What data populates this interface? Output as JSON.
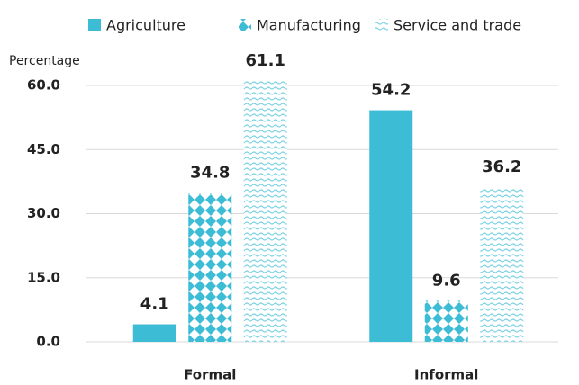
{
  "chart_data": {
    "type": "bar",
    "y_label": "Percentage",
    "categories": [
      "Formal",
      "Informal"
    ],
    "series": [
      {
        "name": "Agriculture",
        "color": "#3dbcd6",
        "values": [
          4.1,
          54.2
        ]
      },
      {
        "name": "Manufacturing",
        "color": "#3dbcd6",
        "values": [
          34.8,
          9.6
        ]
      },
      {
        "name": "Service and trade",
        "color": "#3dbcd6",
        "values": [
          61.1,
          36.2
        ]
      }
    ],
    "ylim": [
      0,
      60
    ],
    "yticks": [
      {
        "value": 0,
        "label": "0.0"
      },
      {
        "value": 15,
        "label": "15.0"
      },
      {
        "value": 30,
        "label": "30.0"
      },
      {
        "value": 45,
        "label": "45.0"
      },
      {
        "value": 60,
        "label": "60.0"
      }
    ],
    "grid": true
  }
}
